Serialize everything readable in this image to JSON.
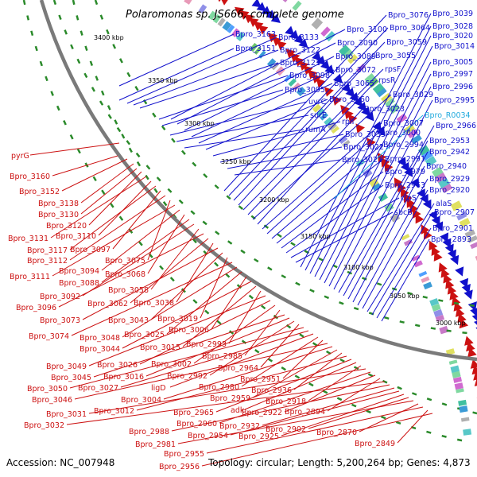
{
  "title": "Polaromonas sp. JS666, complete genome",
  "footer": {
    "accession": "Accession: NC_007948",
    "summary": "Topology: circular; Length: 5,200,264 bp; Genes: 4,873"
  },
  "colors": {
    "forward": "#1111cc",
    "reverse": "#cc1111",
    "rna": "#22aadd",
    "backbone": "#808080",
    "dashes": "#2a8a2a"
  },
  "scale_ticks": [
    "3400 kbp",
    "3350 kbp",
    "3300 kbp",
    "3250 kbp",
    "3200 kbp",
    "3150 kbp",
    "3100 kbp",
    "3050 kbp",
    "3000 kbp"
  ],
  "forward_labels": [
    "Bpro_3163",
    "Bpro_3151",
    "Bpro_3133",
    "Bpro_3122",
    "Bpro_3121",
    "Bpro_3098",
    "Bpro_3095",
    "uvrC",
    "surE",
    "rumA",
    "Bpro_3100",
    "Bpro_3090",
    "Bpro_3089",
    "Bpro_3072",
    "Bpro_3065",
    "Bpro_3060",
    "rplI",
    "Bpro_3033",
    "Bpro_3022",
    "Bpro_3021",
    "Bpro_3076",
    "Bpro_3064",
    "Bpro_3059",
    "Bpro_3055",
    "rpsF",
    "rpsR",
    "Bpro_3029",
    "Bpro_3023",
    "Bpro_3007",
    "Bpro_3000",
    "Bpro_2994",
    "Bpro_2991",
    "Bpro_2979",
    "Bpro_2963",
    "clpS",
    "sbcB",
    "Bpro_3039",
    "Bpro_3028",
    "Bpro_3020",
    "Bpro_3014",
    "Bpro_3005",
    "Bpro_2997",
    "Bpro_2996",
    "Bpro_2995",
    "Bpro_2966",
    "Bpro_2953",
    "Bpro_2942",
    "Bpro_2940",
    "Bpro_2929",
    "Bpro_2920",
    "alaS",
    "Bpro_2907",
    "Bpro_2901",
    "Bpro_2893"
  ],
  "rna_labels": [
    "Bpro_R0034"
  ],
  "reverse_labels": [
    "pyrG",
    "Bpro_3160",
    "Bpro_3152",
    "Bpro_3138",
    "Bpro_3130",
    "Bpro_3120",
    "Bpro_3131",
    "Bpro_3110",
    "Bpro_3117",
    "Bpro_3097",
    "Bpro_3112",
    "Bpro_3075",
    "Bpro_3111",
    "Bpro_3094",
    "Bpro_3068",
    "Bpro_3088",
    "Bpro_3092",
    "Bpro_3058",
    "Bpro_3096",
    "Bpro_3062",
    "Bpro_3038",
    "Bpro_3073",
    "Bpro_3043",
    "Bpro_3019",
    "Bpro_3074",
    "Bpro_3048",
    "Bpro_3025",
    "Bpro_3006",
    "Bpro_3044",
    "Bpro_3015",
    "Bpro_2993",
    "Bpro_3049",
    "Bpro_3026",
    "Bpro_3002",
    "Bpro_2985",
    "Bpro_3045",
    "Bpro_3016",
    "Bpro_2992",
    "Bpro_2964",
    "Bpro_3050",
    "Bpro_3027",
    "ligD",
    "Bpro_2980",
    "Bpro_2951",
    "Bpro_3046",
    "Bpro_3004",
    "Bpro_2959",
    "Bpro_2936",
    "Bpro_3012",
    "Bpro_2965",
    "adk",
    "Bpro_2918",
    "Bpro_3031",
    "Bpro_2960",
    "Bpro_2922",
    "Bpro_2894",
    "Bpro_3032",
    "Bpro_2988",
    "Bpro_2932",
    "Bpro_2954",
    "Bpro_2925",
    "Bpro_2902",
    "Bpro_2981",
    "Bpro_2870",
    "Bpro_2955",
    "Bpro_2849",
    "Bpro_2956"
  ]
}
